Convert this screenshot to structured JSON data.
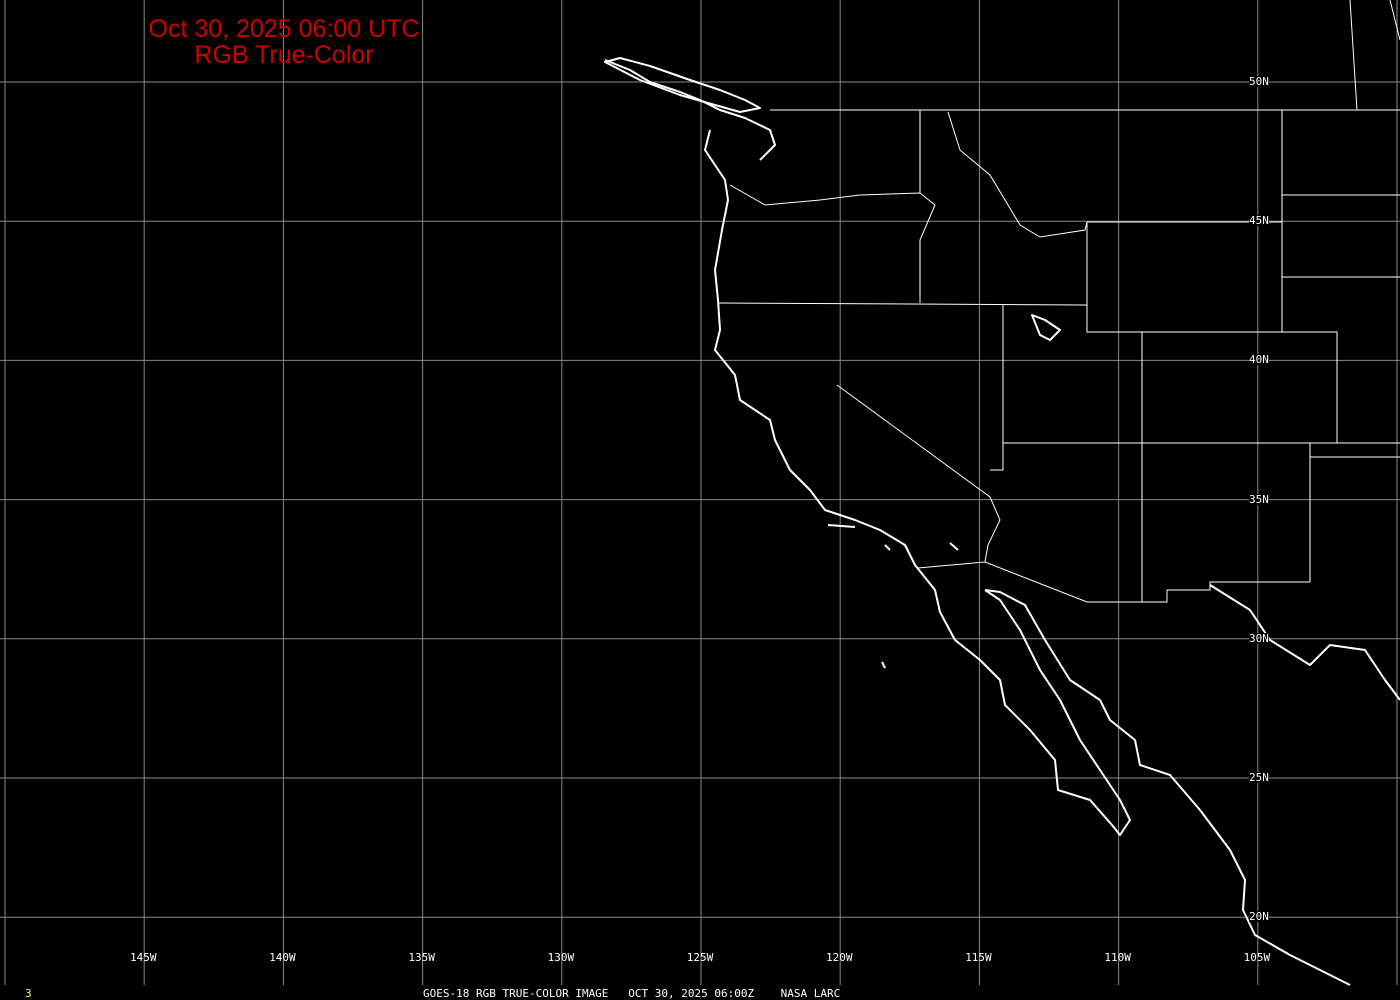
{
  "title": {
    "line1": "Oct 30, 2025 06:00 UTC",
    "line2": "RGB True-Color",
    "color": "#d00000"
  },
  "longitude_labels": [
    "145W",
    "140W",
    "135W",
    "130W",
    "125W",
    "120W",
    "115W",
    "110W",
    "105W"
  ],
  "latitude_labels": [
    "50N",
    "45N",
    "40N",
    "35N",
    "30N",
    "25N",
    "20N"
  ],
  "footer": {
    "frame_number": "3",
    "caption": "GOES-18 RGB TRUE-COLOR IMAGE   OCT 30, 2025 06:00Z    NASA LARC",
    "frame_color": "#ffff66"
  },
  "map": {
    "projection": "equirectangular",
    "lon_range": [
      "150W",
      "100W"
    ],
    "lat_range": [
      "17N",
      "53N"
    ],
    "grid_interval_deg": 5
  }
}
